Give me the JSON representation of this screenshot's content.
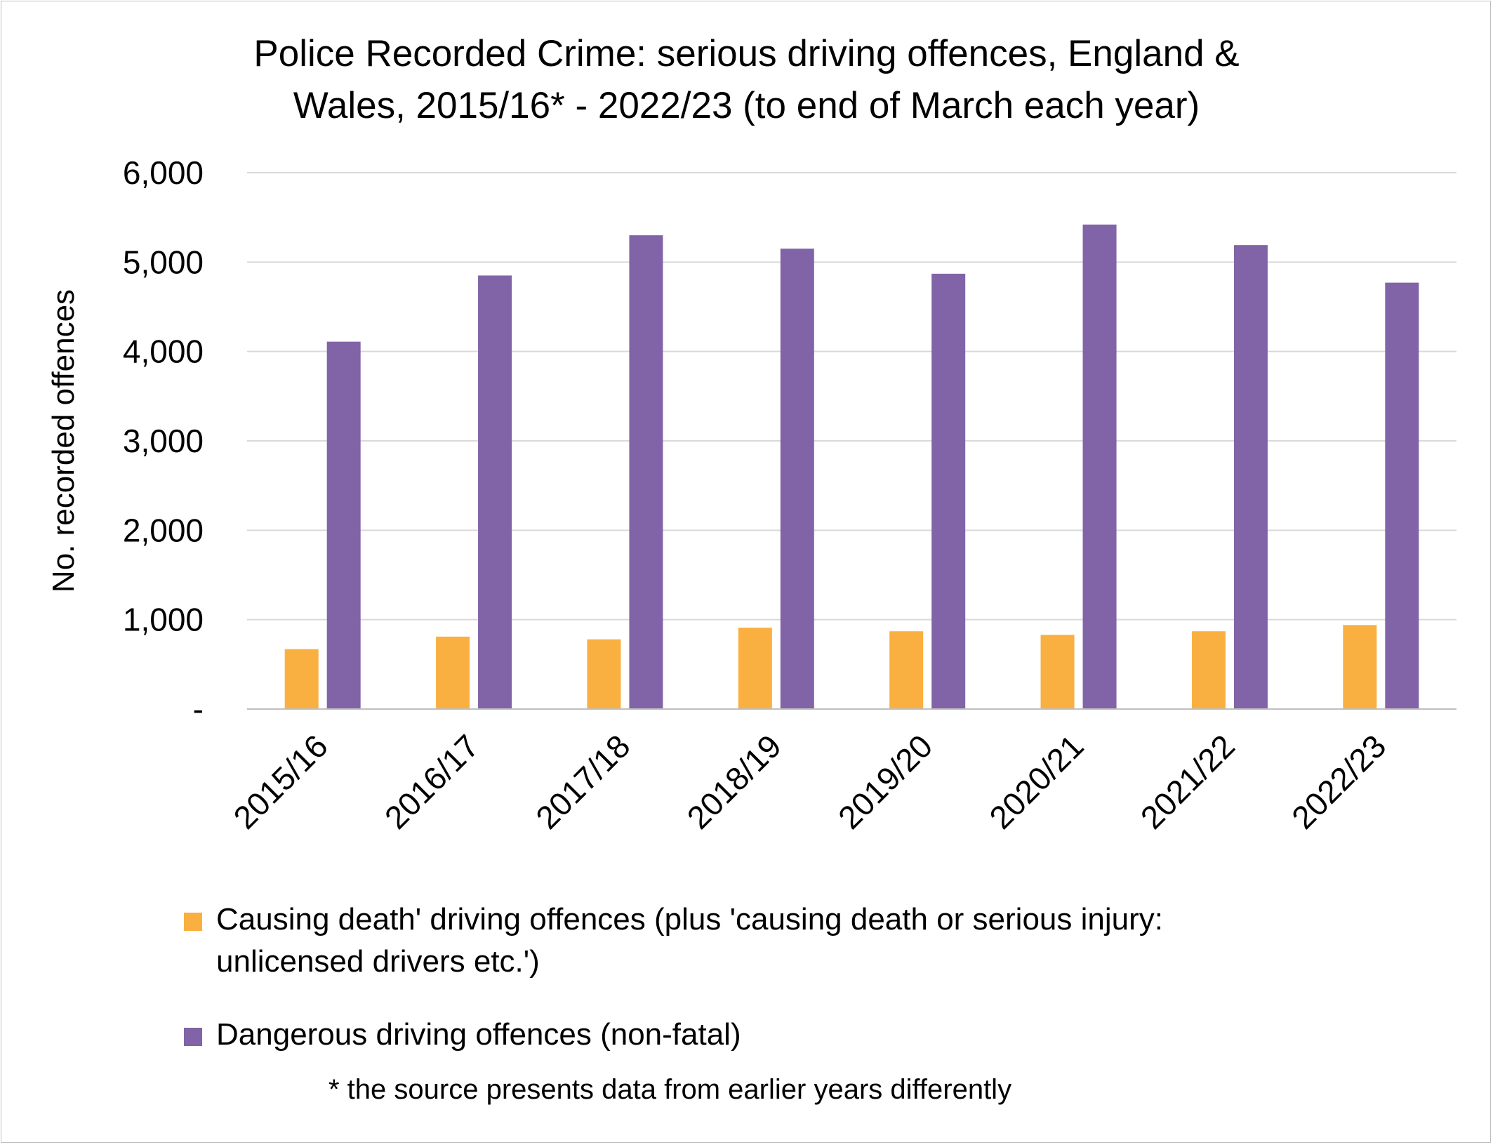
{
  "chart_data": {
    "type": "bar",
    "title_lines": [
      "Police Recorded Crime: serious driving offences, England &",
      "Wales, 2015/16* - 2022/23 (to end of March each year)"
    ],
    "ylabel": "No. recorded offences",
    "ylim": [
      0,
      6000
    ],
    "yticks": [
      {
        "value": 0,
        "label": "-"
      },
      {
        "value": 1000,
        "label": "1,000"
      },
      {
        "value": 2000,
        "label": "2,000"
      },
      {
        "value": 3000,
        "label": "3,000"
      },
      {
        "value": 4000,
        "label": "4,000"
      },
      {
        "value": 5000,
        "label": "5,000"
      },
      {
        "value": 6000,
        "label": "6,000"
      }
    ],
    "grid": true,
    "legend_position": "bottom",
    "categories": [
      "2015/16",
      "2016/17",
      "2017/18",
      "2018/19",
      "2019/20",
      "2020/21",
      "2021/22",
      "2022/23"
    ],
    "series": [
      {
        "name": "Causing death' driving offences (plus 'causing death or serious injury: unlicensed drivers etc.')",
        "name_lines": [
          "Causing death' driving offences (plus 'causing death or serious injury:",
          "unlicensed drivers etc.')"
        ],
        "color": "#F9B040",
        "values": [
          670,
          810,
          780,
          910,
          870,
          830,
          870,
          940
        ]
      },
      {
        "name": "Dangerous driving offences (non-fatal)",
        "name_lines": [
          "Dangerous driving offences (non-fatal)"
        ],
        "color": "#8064A7",
        "values": [
          4110,
          4850,
          5300,
          5150,
          4870,
          5420,
          5190,
          4770
        ]
      }
    ],
    "footnote": "* the source presents data from earlier years differently",
    "gridline_color": "#d9d9d9",
    "axis_color": "#bfbfbf"
  }
}
